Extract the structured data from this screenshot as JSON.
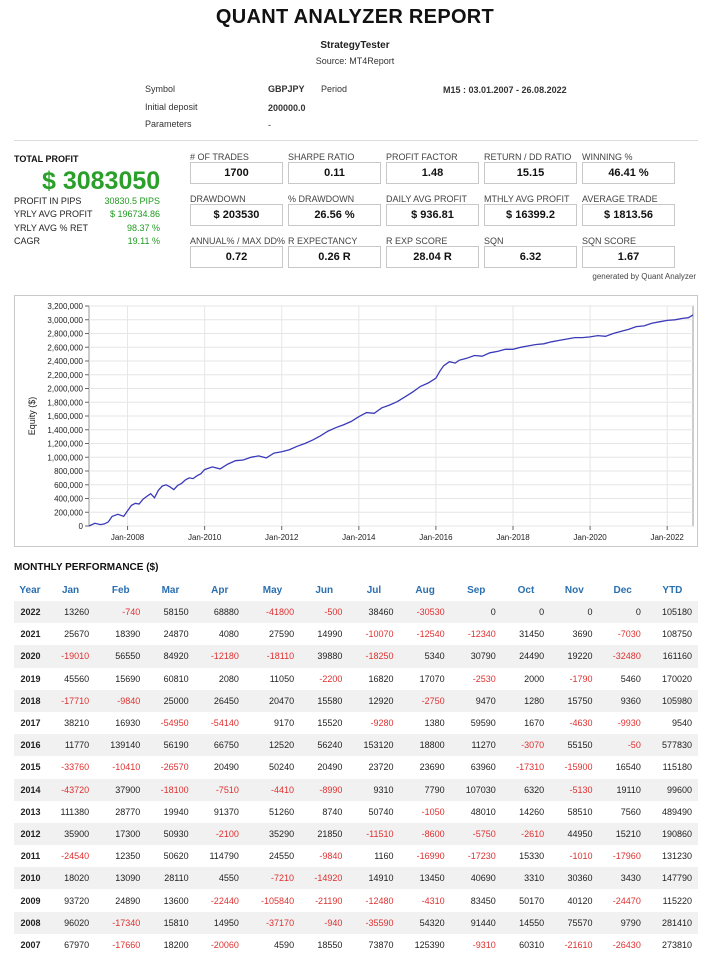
{
  "header": {
    "title": "QUANT ANALYZER REPORT",
    "strategy": "StrategyTester",
    "source": "Source: MT4Report"
  },
  "info": {
    "symbol_label": "Symbol",
    "symbol_value": "GBPJPY",
    "period_label": "Period",
    "period_value": "M15 : 03.01.2007 - 26.08.2022",
    "deposit_label": "Initial deposit",
    "deposit_value": "200000.0",
    "params_label": "Parameters",
    "params_value": "-"
  },
  "summary": {
    "total_profit_label": "TOTAL PROFIT",
    "total_profit": "$ 3083050",
    "rows": [
      {
        "label": "PROFIT IN PIPS",
        "value": "30830.5 PIPS"
      },
      {
        "label": "YRLY AVG PROFIT",
        "value": "$ 196734.86"
      },
      {
        "label": "YRLY AVG % RET",
        "value": "98.37 %"
      },
      {
        "label": "CAGR",
        "value": "19.11 %"
      }
    ]
  },
  "metrics": [
    {
      "label": "# OF TRADES",
      "value": "1700"
    },
    {
      "label": "SHARPE RATIO",
      "value": "0.11"
    },
    {
      "label": "PROFIT FACTOR",
      "value": "1.48"
    },
    {
      "label": "RETURN / DD RATIO",
      "value": "15.15"
    },
    {
      "label": "WINNING %",
      "value": "46.41 %"
    },
    {
      "label": "DRAWDOWN",
      "value": "$ 203530"
    },
    {
      "label": "% DRAWDOWN",
      "value": "26.56 %"
    },
    {
      "label": "DAILY AVG PROFIT",
      "value": "$ 936.81"
    },
    {
      "label": "MTHLY AVG PROFIT",
      "value": "$ 16399.2"
    },
    {
      "label": "AVERAGE TRADE",
      "value": "$ 1813.56"
    },
    {
      "label": "ANNUAL% / MAX DD%",
      "value": "0.72"
    },
    {
      "label": "R EXPECTANCY",
      "value": "0.26 R"
    },
    {
      "label": "R EXP SCORE",
      "value": "28.04 R"
    },
    {
      "label": "SQN",
      "value": "6.32"
    },
    {
      "label": "SQN SCORE",
      "value": "1.67"
    }
  ],
  "generated_by": "generated by Quant Analyzer",
  "chart_data": {
    "type": "line",
    "ylabel": "Equity ($)",
    "xlabel": "",
    "ylim": [
      0,
      3200000
    ],
    "yticks": [
      0,
      200000,
      400000,
      600000,
      800000,
      1000000,
      1200000,
      1400000,
      1600000,
      1800000,
      2000000,
      2200000,
      2400000,
      2600000,
      2800000,
      3000000,
      3200000
    ],
    "ytick_labels": [
      "0",
      "200,000",
      "400,000",
      "600,000",
      "800,000",
      "1,000,000",
      "1,200,000",
      "1,400,000",
      "1,600,000",
      "1,800,000",
      "2,000,000",
      "2,200,000",
      "2,400,000",
      "2,600,000",
      "2,800,000",
      "3,000,000",
      "3,200,000"
    ],
    "xlim": [
      2007.0,
      2022.67
    ],
    "xticks": [
      2008,
      2010,
      2012,
      2014,
      2016,
      2018,
      2020,
      2022
    ],
    "xtick_labels": [
      "Jan-2008",
      "Jan-2010",
      "Jan-2012",
      "Jan-2014",
      "Jan-2016",
      "Jan-2018",
      "Jan-2020",
      "Jan-2022"
    ],
    "color": "#3a3ab8",
    "series": [
      {
        "x": [
          2007.0,
          2007.15,
          2007.3,
          2007.4,
          2007.5,
          2007.6,
          2007.75,
          2007.9,
          2008.0,
          2008.1,
          2008.2,
          2008.3,
          2008.4,
          2008.5,
          2008.6,
          2008.7,
          2008.8,
          2008.9,
          2009.0,
          2009.1,
          2009.2,
          2009.3,
          2009.4,
          2009.5,
          2009.6,
          2009.7,
          2009.8,
          2009.9,
          2010.0,
          2010.2,
          2010.4,
          2010.6,
          2010.8,
          2011.0,
          2011.2,
          2011.4,
          2011.6,
          2011.8,
          2012.0,
          2012.2,
          2012.4,
          2012.6,
          2012.8,
          2013.0,
          2013.2,
          2013.4,
          2013.6,
          2013.8,
          2014.0,
          2014.2,
          2014.4,
          2014.6,
          2014.8,
          2015.0,
          2015.2,
          2015.4,
          2015.6,
          2015.8,
          2016.0,
          2016.1,
          2016.2,
          2016.35,
          2016.5,
          2016.6,
          2016.8,
          2017.0,
          2017.2,
          2017.4,
          2017.6,
          2017.8,
          2018.0,
          2018.2,
          2018.4,
          2018.6,
          2018.8,
          2019.0,
          2019.2,
          2019.4,
          2019.6,
          2019.8,
          2020.0,
          2020.2,
          2020.4,
          2020.6,
          2020.8,
          2021.0,
          2021.2,
          2021.4,
          2021.6,
          2021.8,
          2022.0,
          2022.2,
          2022.4,
          2022.55,
          2022.67
        ],
        "y": [
          0,
          40000,
          20000,
          30000,
          60000,
          140000,
          170000,
          140000,
          220000,
          300000,
          330000,
          320000,
          390000,
          430000,
          470000,
          410000,
          520000,
          580000,
          600000,
          570000,
          530000,
          590000,
          620000,
          670000,
          700000,
          690000,
          730000,
          760000,
          820000,
          860000,
          830000,
          900000,
          950000,
          960000,
          1000000,
          1020000,
          990000,
          1060000,
          1080000,
          1110000,
          1160000,
          1200000,
          1250000,
          1310000,
          1380000,
          1430000,
          1470000,
          1520000,
          1590000,
          1650000,
          1640000,
          1720000,
          1760000,
          1810000,
          1880000,
          1950000,
          2030000,
          2080000,
          2150000,
          2250000,
          2330000,
          2390000,
          2370000,
          2410000,
          2440000,
          2480000,
          2470000,
          2520000,
          2540000,
          2570000,
          2570000,
          2600000,
          2620000,
          2640000,
          2650000,
          2680000,
          2700000,
          2720000,
          2740000,
          2740000,
          2750000,
          2770000,
          2760000,
          2800000,
          2830000,
          2860000,
          2900000,
          2910000,
          2950000,
          2970000,
          2990000,
          3000000,
          3020000,
          3030000,
          3070000
        ]
      }
    ]
  },
  "monthly": {
    "title": "MONTHLY PERFORMANCE ($)",
    "headers": [
      "Year",
      "Jan",
      "Feb",
      "Mar",
      "Apr",
      "May",
      "Jun",
      "Jul",
      "Aug",
      "Sep",
      "Oct",
      "Nov",
      "Dec",
      "YTD"
    ],
    "rows": [
      [
        "2022",
        "13260",
        "-740",
        "58150",
        "68880",
        "-41800",
        "-500",
        "38460",
        "-30530",
        "0",
        "0",
        "0",
        "0",
        "105180"
      ],
      [
        "2021",
        "25670",
        "18390",
        "24870",
        "4080",
        "27590",
        "14990",
        "-10070",
        "-12540",
        "-12340",
        "31450",
        "3690",
        "-7030",
        "108750"
      ],
      [
        "2020",
        "-19010",
        "56550",
        "84920",
        "-12180",
        "-18110",
        "39880",
        "-18250",
        "5340",
        "30790",
        "24490",
        "19220",
        "-32480",
        "161160"
      ],
      [
        "2019",
        "45560",
        "15690",
        "60810",
        "2080",
        "11050",
        "-2200",
        "16820",
        "17070",
        "-2530",
        "2000",
        "-1790",
        "5460",
        "170020"
      ],
      [
        "2018",
        "-17710",
        "-9840",
        "25000",
        "26450",
        "20470",
        "15580",
        "12920",
        "-2750",
        "9470",
        "1280",
        "15750",
        "9360",
        "105980"
      ],
      [
        "2017",
        "38210",
        "16930",
        "-54950",
        "-54140",
        "9170",
        "15520",
        "-9280",
        "1380",
        "59590",
        "1670",
        "-4630",
        "-9930",
        "9540"
      ],
      [
        "2016",
        "11770",
        "139140",
        "56190",
        "66750",
        "12520",
        "56240",
        "153120",
        "18800",
        "11270",
        "-3070",
        "55150",
        "-50",
        "577830"
      ],
      [
        "2015",
        "-33760",
        "-10410",
        "-26570",
        "20490",
        "50240",
        "20490",
        "23720",
        "23690",
        "63960",
        "-17310",
        "-15900",
        "16540",
        "115180"
      ],
      [
        "2014",
        "-43720",
        "37900",
        "-18100",
        "-7510",
        "-4410",
        "-8990",
        "9310",
        "7790",
        "107030",
        "6320",
        "-5130",
        "19110",
        "99600"
      ],
      [
        "2013",
        "111380",
        "28770",
        "19940",
        "91370",
        "51260",
        "8740",
        "50740",
        "-1050",
        "48010",
        "14260",
        "58510",
        "7560",
        "489490"
      ],
      [
        "2012",
        "35900",
        "17300",
        "50930",
        "-2100",
        "35290",
        "21850",
        "-11510",
        "-8600",
        "-5750",
        "-2610",
        "44950",
        "15210",
        "190860"
      ],
      [
        "2011",
        "-24540",
        "12350",
        "50620",
        "114790",
        "24550",
        "-9840",
        "1160",
        "-16990",
        "-17230",
        "15330",
        "-1010",
        "-17960",
        "131230"
      ],
      [
        "2010",
        "18020",
        "13090",
        "28110",
        "4550",
        "-7210",
        "-14920",
        "14910",
        "13450",
        "40690",
        "3310",
        "30360",
        "3430",
        "147790"
      ],
      [
        "2009",
        "93720",
        "24890",
        "13600",
        "-22440",
        "-105840",
        "-21190",
        "-12480",
        "-4310",
        "83450",
        "50170",
        "40120",
        "-24470",
        "115220"
      ],
      [
        "2008",
        "96020",
        "-17340",
        "15810",
        "14950",
        "-37170",
        "-940",
        "-35590",
        "54320",
        "91440",
        "14550",
        "75570",
        "9790",
        "281410"
      ],
      [
        "2007",
        "67970",
        "-17660",
        "18200",
        "-20060",
        "4590",
        "18550",
        "73870",
        "125390",
        "-9310",
        "60310",
        "-21610",
        "-26430",
        "273810"
      ]
    ]
  }
}
